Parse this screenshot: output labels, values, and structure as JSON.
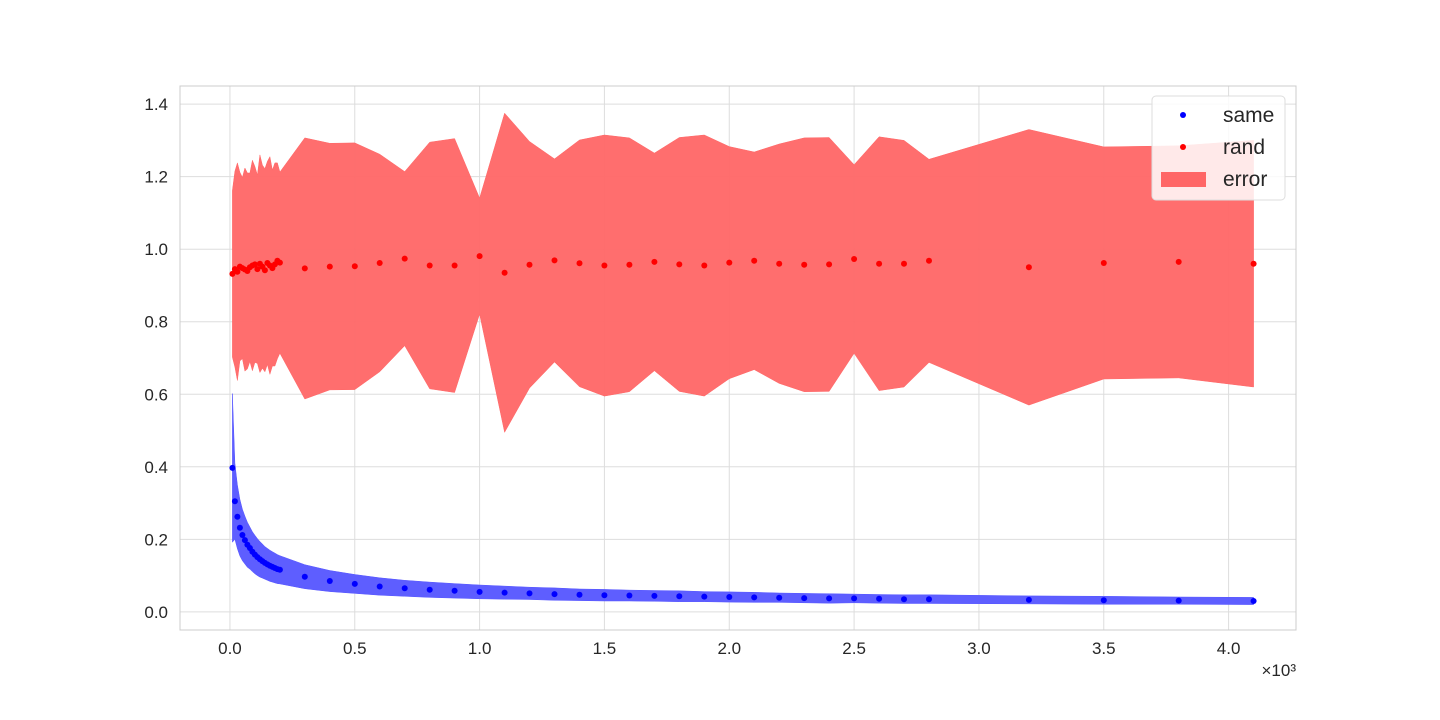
{
  "chart_data": {
    "type": "scatter",
    "title": "",
    "xlabel": "",
    "ylabel": "",
    "x_scale_label": "×10³",
    "xlim": [
      -0.2,
      4.27
    ],
    "ylim": [
      -0.05,
      1.45
    ],
    "x_ticks": [
      0.0,
      0.5,
      1.0,
      1.5,
      2.0,
      2.5,
      3.0,
      3.5,
      4.0
    ],
    "x_tick_labels": [
      "0.0",
      "0.5",
      "1.0",
      "1.5",
      "2.0",
      "2.5",
      "3.0",
      "3.5",
      "4.0"
    ],
    "y_ticks": [
      0.0,
      0.2,
      0.4,
      0.6,
      0.8,
      1.0,
      1.2,
      1.4
    ],
    "y_tick_labels": [
      "0.0",
      "0.2",
      "0.4",
      "0.6",
      "0.8",
      "1.0",
      "1.2",
      "1.4"
    ],
    "grid": true,
    "legend_position": "top-right",
    "legend": [
      {
        "label": "same",
        "kind": "marker",
        "color": "#0000ff"
      },
      {
        "label": "rand",
        "kind": "marker",
        "color": "#ff0000"
      },
      {
        "label": "error",
        "kind": "patch",
        "color": "#ff6666"
      }
    ],
    "series": [
      {
        "name": "same",
        "color": "#0000ff",
        "band_color": "#5555ff",
        "x": [
          0.01,
          0.02,
          0.03,
          0.04,
          0.05,
          0.06,
          0.07,
          0.08,
          0.09,
          0.1,
          0.11,
          0.12,
          0.13,
          0.14,
          0.15,
          0.16,
          0.17,
          0.18,
          0.19,
          0.2,
          0.3,
          0.4,
          0.5,
          0.6,
          0.7,
          0.8,
          0.9,
          1.0,
          1.1,
          1.2,
          1.3,
          1.4,
          1.5,
          1.6,
          1.7,
          1.8,
          1.9,
          2.0,
          2.1,
          2.2,
          2.3,
          2.4,
          2.5,
          2.6,
          2.7,
          2.8,
          3.2,
          3.5,
          3.8,
          4.1
        ],
        "y": [
          0.397,
          0.305,
          0.262,
          0.232,
          0.212,
          0.198,
          0.185,
          0.176,
          0.166,
          0.158,
          0.151,
          0.145,
          0.14,
          0.135,
          0.131,
          0.127,
          0.124,
          0.121,
          0.118,
          0.116,
          0.097,
          0.085,
          0.077,
          0.07,
          0.065,
          0.061,
          0.058,
          0.055,
          0.053,
          0.051,
          0.049,
          0.047,
          0.046,
          0.045,
          0.044,
          0.043,
          0.042,
          0.041,
          0.04,
          0.039,
          0.038,
          0.037,
          0.037,
          0.036,
          0.035,
          0.035,
          0.033,
          0.032,
          0.031,
          0.03
        ],
        "err": [
          0.205,
          0.105,
          0.088,
          0.078,
          0.071,
          0.066,
          0.062,
          0.058,
          0.055,
          0.053,
          0.051,
          0.049,
          0.047,
          0.045,
          0.044,
          0.043,
          0.042,
          0.041,
          0.04,
          0.039,
          0.033,
          0.029,
          0.026,
          0.024,
          0.022,
          0.021,
          0.02,
          0.019,
          0.018,
          0.017,
          0.017,
          0.016,
          0.016,
          0.015,
          0.015,
          0.015,
          0.014,
          0.014,
          0.014,
          0.013,
          0.013,
          0.013,
          0.012,
          0.012,
          0.012,
          0.012,
          0.011,
          0.011,
          0.01,
          0.01
        ]
      },
      {
        "name": "rand",
        "color": "#ff0000",
        "band_color": "#ff6666",
        "x": [
          0.01,
          0.02,
          0.03,
          0.04,
          0.05,
          0.06,
          0.07,
          0.08,
          0.09,
          0.1,
          0.11,
          0.12,
          0.13,
          0.14,
          0.15,
          0.16,
          0.17,
          0.18,
          0.19,
          0.2,
          0.3,
          0.4,
          0.5,
          0.6,
          0.7,
          0.8,
          0.9,
          1.0,
          1.1,
          1.2,
          1.3,
          1.4,
          1.5,
          1.6,
          1.7,
          1.8,
          1.9,
          2.0,
          2.1,
          2.2,
          2.3,
          2.4,
          2.5,
          2.6,
          2.7,
          2.8,
          3.2,
          3.5,
          3.8,
          4.1
        ],
        "y": [
          0.932,
          0.945,
          0.938,
          0.952,
          0.948,
          0.944,
          0.94,
          0.95,
          0.955,
          0.958,
          0.945,
          0.96,
          0.952,
          0.942,
          0.962,
          0.955,
          0.948,
          0.958,
          0.968,
          0.963,
          0.947,
          0.952,
          0.953,
          0.962,
          0.974,
          0.955,
          0.955,
          0.981,
          0.935,
          0.957,
          0.969,
          0.961,
          0.955,
          0.957,
          0.965,
          0.958,
          0.955,
          0.963,
          0.968,
          0.96,
          0.957,
          0.958,
          0.973,
          0.96,
          0.96,
          0.968,
          0.95,
          0.962,
          0.965,
          0.96
        ],
        "err": [
          0.23,
          0.27,
          0.3,
          0.26,
          0.25,
          0.28,
          0.27,
          0.26,
          0.29,
          0.27,
          0.26,
          0.3,
          0.28,
          0.28,
          0.28,
          0.3,
          0.27,
          0.28,
          0.27,
          0.25,
          0.36,
          0.34,
          0.34,
          0.3,
          0.24,
          0.34,
          0.35,
          0.16,
          0.44,
          0.34,
          0.28,
          0.34,
          0.36,
          0.35,
          0.3,
          0.35,
          0.36,
          0.32,
          0.3,
          0.33,
          0.35,
          0.35,
          0.26,
          0.35,
          0.34,
          0.28,
          0.38,
          0.32,
          0.32,
          0.34
        ]
      }
    ]
  }
}
